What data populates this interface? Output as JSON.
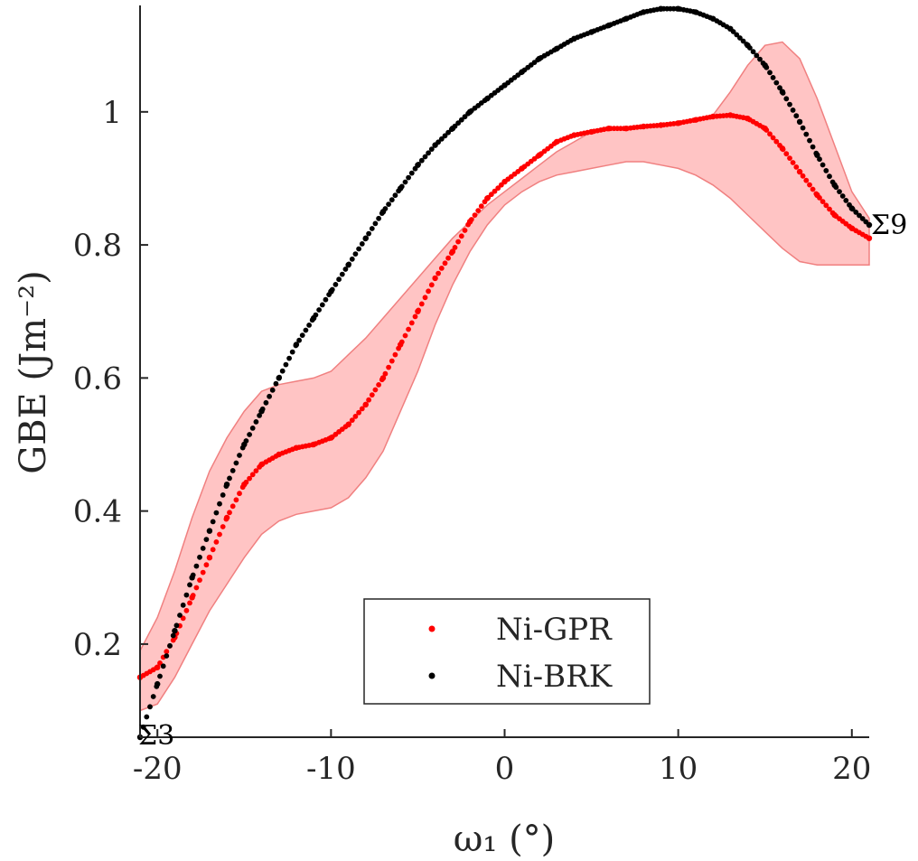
{
  "chart_data": {
    "type": "scatter",
    "xlabel": "ω₁ (°)",
    "ylabel": "GBE (Jm⁻²)",
    "xlim": [
      -21,
      21
    ],
    "ylim": [
      0.06,
      1.16
    ],
    "xticks": [
      -20,
      -10,
      0,
      10,
      20
    ],
    "xtick_labels": [
      "-20",
      "-10",
      "0",
      "10",
      "20"
    ],
    "yticks": [
      0.2,
      0.4,
      0.6,
      0.8,
      1.0
    ],
    "ytick_labels": [
      "0.2",
      "0.4",
      "0.6",
      "0.8",
      "1"
    ],
    "grid": false,
    "legend": {
      "position": "bottom-center",
      "entries": [
        "Ni-GPR",
        "Ni-BRK"
      ]
    },
    "annotations": [
      {
        "text": "Σ3",
        "x": -21,
        "y": 0.06
      },
      {
        "text": "Σ9",
        "x": 21,
        "y": 0.83
      }
    ],
    "series": [
      {
        "name": "Ni-GPR",
        "color": "#ff0000",
        "marker": "dot",
        "x": [
          -21,
          -20,
          -19,
          -18,
          -17,
          -16,
          -15,
          -14,
          -13,
          -12,
          -11,
          -10,
          -9,
          -8,
          -7,
          -6,
          -5,
          -4,
          -3,
          -2,
          -1,
          0,
          1,
          2,
          3,
          4,
          5,
          6,
          7,
          8,
          9,
          10,
          11,
          12,
          13,
          14,
          15,
          16,
          17,
          18,
          19,
          20,
          21
        ],
        "y": [
          0.15,
          0.165,
          0.21,
          0.27,
          0.33,
          0.39,
          0.44,
          0.47,
          0.485,
          0.495,
          0.5,
          0.51,
          0.53,
          0.56,
          0.6,
          0.65,
          0.7,
          0.75,
          0.79,
          0.835,
          0.87,
          0.895,
          0.915,
          0.935,
          0.955,
          0.965,
          0.97,
          0.975,
          0.975,
          0.978,
          0.98,
          0.983,
          0.988,
          0.993,
          0.995,
          0.99,
          0.975,
          0.945,
          0.91,
          0.875,
          0.845,
          0.825,
          0.81
        ],
        "band_upper": [
          0.19,
          0.24,
          0.31,
          0.39,
          0.46,
          0.51,
          0.55,
          0.58,
          0.59,
          0.595,
          0.6,
          0.61,
          0.635,
          0.66,
          0.69,
          0.72,
          0.75,
          0.78,
          0.81,
          0.835,
          0.86,
          0.88,
          0.9,
          0.92,
          0.94,
          0.955,
          0.97,
          0.975,
          0.975,
          0.978,
          0.98,
          0.983,
          0.988,
          0.995,
          1.03,
          1.07,
          1.1,
          1.105,
          1.08,
          1.02,
          0.95,
          0.88,
          0.84
        ],
        "band_lower": [
          0.1,
          0.11,
          0.15,
          0.2,
          0.25,
          0.29,
          0.33,
          0.365,
          0.385,
          0.395,
          0.4,
          0.405,
          0.42,
          0.45,
          0.49,
          0.55,
          0.61,
          0.68,
          0.74,
          0.79,
          0.83,
          0.86,
          0.88,
          0.895,
          0.905,
          0.91,
          0.915,
          0.92,
          0.925,
          0.925,
          0.92,
          0.915,
          0.905,
          0.89,
          0.87,
          0.845,
          0.82,
          0.795,
          0.775,
          0.77,
          0.77,
          0.77,
          0.77
        ],
        "band_color": "#ffb0b0"
      },
      {
        "name": "Ni-BRK",
        "color": "#000000",
        "marker": "dot",
        "x": [
          -21,
          -20,
          -19,
          -18,
          -17,
          -16,
          -15,
          -14,
          -13,
          -12,
          -11,
          -10,
          -9,
          -8,
          -7,
          -6,
          -5,
          -4,
          -3,
          -2,
          -1,
          0,
          1,
          2,
          3,
          4,
          5,
          6,
          7,
          8,
          9,
          10,
          11,
          12,
          13,
          14,
          15,
          16,
          17,
          18,
          19,
          20,
          21
        ],
        "y": [
          0.06,
          0.14,
          0.22,
          0.3,
          0.37,
          0.44,
          0.5,
          0.55,
          0.6,
          0.65,
          0.69,
          0.73,
          0.77,
          0.81,
          0.85,
          0.885,
          0.92,
          0.95,
          0.975,
          1.0,
          1.02,
          1.04,
          1.06,
          1.08,
          1.095,
          1.11,
          1.12,
          1.13,
          1.14,
          1.15,
          1.155,
          1.155,
          1.15,
          1.14,
          1.125,
          1.1,
          1.07,
          1.03,
          0.985,
          0.935,
          0.89,
          0.855,
          0.83
        ]
      }
    ]
  }
}
